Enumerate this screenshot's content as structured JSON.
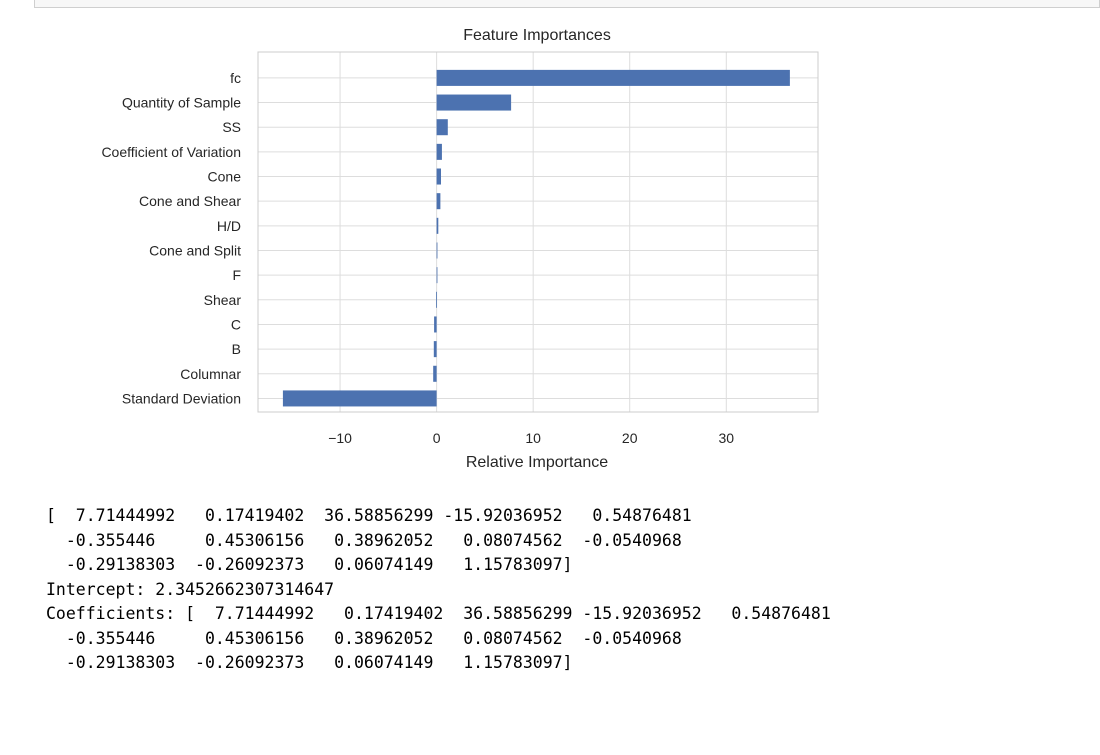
{
  "chart_data": {
    "type": "bar",
    "orientation": "horizontal",
    "title": "Feature Importances",
    "xlabel": "Relative Importance",
    "ylabel": "",
    "categories": [
      "fc",
      "Quantity of Sample",
      "SS",
      "Coefficient of Variation",
      "Cone",
      "Cone and Shear",
      "H/D",
      "Cone and Split",
      "F",
      "Shear",
      "C",
      "B",
      "Columnar",
      "Standard Deviation"
    ],
    "values": [
      36.58856299,
      7.71444992,
      1.15783097,
      0.54876481,
      0.45306156,
      0.38962052,
      0.17419402,
      0.08074562,
      0.06074149,
      -0.0540968,
      -0.26092373,
      -0.29138303,
      -0.355446,
      -15.92036952
    ],
    "xlim": [
      -18.5,
      39.5
    ],
    "xticks": [
      -10,
      0,
      10,
      20,
      30
    ],
    "xtick_labels": [
      "−10",
      "0",
      "10",
      "20",
      "30"
    ],
    "grid": true,
    "bar_color": "#4c72b0"
  },
  "output": {
    "lines": [
      "[  7.71444992   0.17419402  36.58856299 -15.92036952   0.54876481",
      "  -0.355446     0.45306156   0.38962052   0.08074562  -0.0540968",
      "  -0.29138303  -0.26092373   0.06074149   1.15783097]",
      "Intercept: 2.3452662307314647",
      "Coefficients: [  7.71444992   0.17419402  36.58856299 -15.92036952   0.54876481",
      "  -0.355446     0.45306156   0.38962052   0.08074562  -0.0540968",
      "  -0.29138303  -0.26092373   0.06074149   1.15783097]"
    ]
  }
}
